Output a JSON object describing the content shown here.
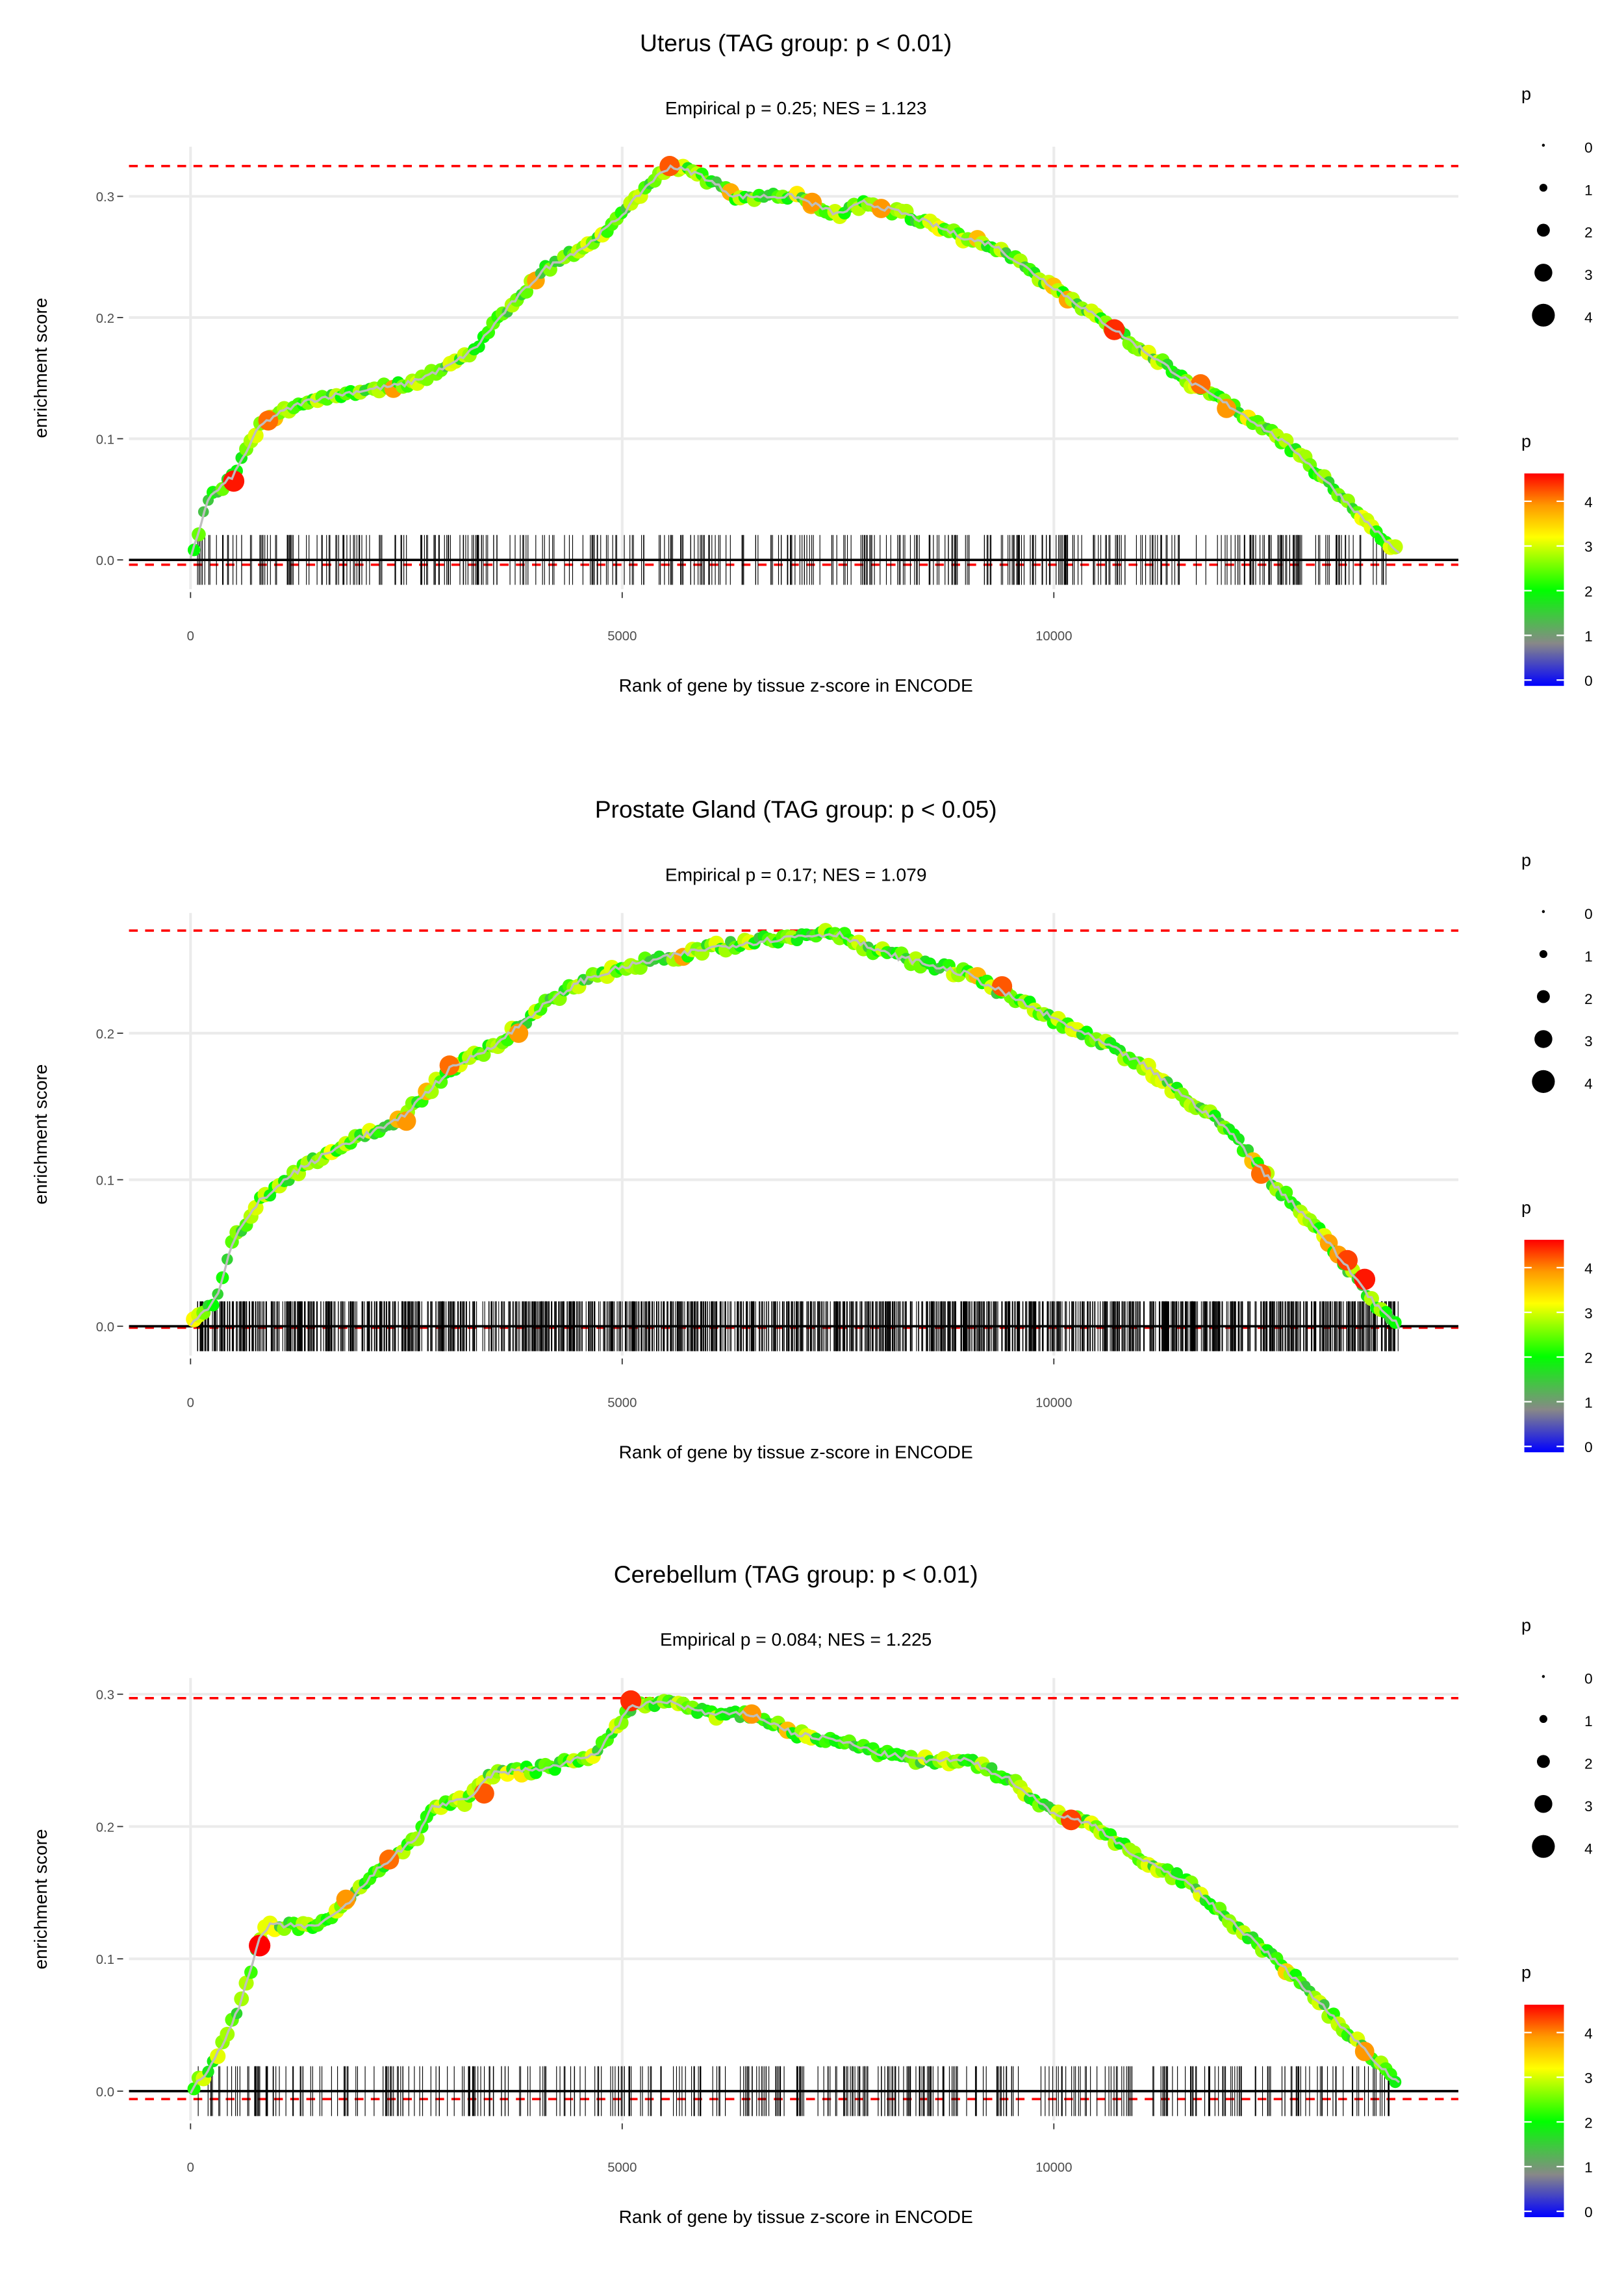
{
  "chart_data": [
    {
      "type": "scatter",
      "title": "Uterus (TAG group: p < 0.01)",
      "subtitle": "Empirical p = 0.25; NES = 1.123",
      "xlabel": "Rank of gene by tissue z-score in ENCODE",
      "ylabel": "enrichment score",
      "xlim": [
        -700,
        14800
      ],
      "ylim": [
        -0.02,
        0.34
      ],
      "xticks": [
        0,
        5000,
        10000
      ],
      "xtick_labels": [
        "0",
        "5000",
        "10000"
      ],
      "yticks": [
        0.0,
        0.1,
        0.2,
        0.3
      ],
      "ytick_labels": [
        "0.0",
        "0.1",
        "0.2",
        "0.3"
      ],
      "max_es": 0.325,
      "min_es": -0.004,
      "gene_tick_count": 420,
      "gene_tick_end": 13900,
      "curve": [
        [
          0,
          0
        ],
        [
          200,
          0.05
        ],
        [
          500,
          0.07
        ],
        [
          800,
          0.11
        ],
        [
          1000,
          0.12
        ],
        [
          1300,
          0.13
        ],
        [
          1600,
          0.135
        ],
        [
          2000,
          0.14
        ],
        [
          2500,
          0.145
        ],
        [
          3000,
          0.16
        ],
        [
          3300,
          0.175
        ],
        [
          3700,
          0.21
        ],
        [
          4100,
          0.24
        ],
        [
          4600,
          0.26
        ],
        [
          5000,
          0.285
        ],
        [
          5300,
          0.31
        ],
        [
          5550,
          0.325
        ],
        [
          5900,
          0.318
        ],
        [
          6300,
          0.3
        ],
        [
          7000,
          0.3
        ],
        [
          7500,
          0.285
        ],
        [
          7800,
          0.295
        ],
        [
          8300,
          0.285
        ],
        [
          9000,
          0.265
        ],
        [
          9300,
          0.26
        ],
        [
          10000,
          0.225
        ],
        [
          10700,
          0.19
        ],
        [
          11500,
          0.15
        ],
        [
          12200,
          0.12
        ],
        [
          12800,
          0.09
        ],
        [
          13500,
          0.04
        ],
        [
          14000,
          0.005
        ]
      ],
      "highlight_points": [
        [
          500,
          0.065,
          4.6
        ],
        [
          900,
          0.115,
          4.2
        ],
        [
          5550,
          0.325,
          4.3
        ],
        [
          7200,
          0.295,
          4.0
        ],
        [
          8000,
          0.29,
          4.0
        ],
        [
          10700,
          0.19,
          4.5
        ],
        [
          11700,
          0.145,
          4.2
        ],
        [
          12000,
          0.125,
          4.0
        ]
      ],
      "grid": true,
      "legend_placement": "right"
    },
    {
      "type": "scatter",
      "title": "Prostate Gland (TAG group: p < 0.05)",
      "subtitle": "Empirical p = 0.17; NES = 1.079",
      "xlabel": "Rank of gene by tissue z-score in ENCODE",
      "ylabel": "enrichment score",
      "xlim": [
        -700,
        14800
      ],
      "ylim": [
        -0.01,
        0.28
      ],
      "xticks": [
        0,
        5000,
        10000
      ],
      "xtick_labels": [
        "0",
        "5000",
        "10000"
      ],
      "yticks": [
        0.0,
        0.1,
        0.2
      ],
      "ytick_labels": [
        "0.0",
        "0.1",
        "0.2"
      ],
      "max_es": 0.27,
      "min_es": -0.001,
      "gene_tick_count": 1400,
      "gene_tick_end": 14000,
      "curve": [
        [
          0,
          0
        ],
        [
          300,
          0.02
        ],
        [
          500,
          0.06
        ],
        [
          800,
          0.085
        ],
        [
          1200,
          0.105
        ],
        [
          1800,
          0.125
        ],
        [
          2400,
          0.14
        ],
        [
          3000,
          0.175
        ],
        [
          3600,
          0.195
        ],
        [
          4000,
          0.215
        ],
        [
          4500,
          0.235
        ],
        [
          5000,
          0.245
        ],
        [
          6000,
          0.258
        ],
        [
          7000,
          0.266
        ],
        [
          7500,
          0.268
        ],
        [
          8000,
          0.255
        ],
        [
          9000,
          0.24
        ],
        [
          9500,
          0.225
        ],
        [
          10000,
          0.21
        ],
        [
          11000,
          0.18
        ],
        [
          12000,
          0.135
        ],
        [
          12500,
          0.1
        ],
        [
          13000,
          0.07
        ],
        [
          13400,
          0.04
        ],
        [
          13800,
          0.01
        ],
        [
          14000,
          0
        ]
      ],
      "highlight_points": [
        [
          3000,
          0.178,
          4.2
        ],
        [
          3800,
          0.2,
          4.0
        ],
        [
          2500,
          0.14,
          4.0
        ],
        [
          9400,
          0.232,
          4.3
        ],
        [
          12400,
          0.104,
          4.2
        ],
        [
          13400,
          0.045,
          4.4
        ],
        [
          13600,
          0.032,
          4.6
        ]
      ],
      "grid": true,
      "legend_placement": "right"
    },
    {
      "type": "scatter",
      "title": "Cerebellum (TAG group: p < 0.01)",
      "subtitle": "Empirical p = 0.084; NES = 1.225",
      "xlabel": "Rank of gene by tissue z-score in ENCODE",
      "ylabel": "enrichment score",
      "xlim": [
        -700,
        14800
      ],
      "ylim": [
        -0.02,
        0.31
      ],
      "xticks": [
        0,
        5000,
        10000
      ],
      "xtick_labels": [
        "0",
        "5000",
        "10000"
      ],
      "yticks": [
        0.0,
        0.1,
        0.2,
        0.3
      ],
      "ytick_labels": [
        "0.0",
        "0.1",
        "0.2",
        "0.3"
      ],
      "max_es": 0.297,
      "min_es": -0.006,
      "gene_tick_count": 400,
      "gene_tick_end": 13900,
      "curve": [
        [
          0,
          0
        ],
        [
          200,
          0.015
        ],
        [
          400,
          0.04
        ],
        [
          600,
          0.07
        ],
        [
          800,
          0.115
        ],
        [
          900,
          0.125
        ],
        [
          1200,
          0.125
        ],
        [
          1500,
          0.125
        ],
        [
          1800,
          0.14
        ],
        [
          2200,
          0.17
        ],
        [
          2600,
          0.19
        ],
        [
          2800,
          0.215
        ],
        [
          3200,
          0.22
        ],
        [
          3500,
          0.24
        ],
        [
          4200,
          0.245
        ],
        [
          4700,
          0.255
        ],
        [
          5100,
          0.29
        ],
        [
          5500,
          0.295
        ],
        [
          6000,
          0.285
        ],
        [
          6500,
          0.285
        ],
        [
          7000,
          0.27
        ],
        [
          7500,
          0.265
        ],
        [
          8000,
          0.255
        ],
        [
          8500,
          0.25
        ],
        [
          9000,
          0.25
        ],
        [
          9500,
          0.235
        ],
        [
          10000,
          0.21
        ],
        [
          10500,
          0.2
        ],
        [
          11000,
          0.175
        ],
        [
          11500,
          0.16
        ],
        [
          12200,
          0.12
        ],
        [
          12800,
          0.085
        ],
        [
          13400,
          0.045
        ],
        [
          14000,
          0.005
        ]
      ],
      "highlight_points": [
        [
          800,
          0.11,
          4.7
        ],
        [
          1800,
          0.145,
          4.0
        ],
        [
          2300,
          0.175,
          4.2
        ],
        [
          3400,
          0.225,
          4.3
        ],
        [
          5100,
          0.295,
          4.5
        ],
        [
          6500,
          0.285,
          4.0
        ],
        [
          10200,
          0.205,
          4.4
        ],
        [
          13600,
          0.03,
          4.0
        ]
      ],
      "grid": true,
      "legend_placement": "right"
    }
  ],
  "legend": {
    "size_title": "p",
    "size_labels": [
      "0",
      "1",
      "2",
      "3",
      "4"
    ],
    "color_title": "p",
    "color_labels": [
      "4",
      "3",
      "2",
      "1",
      "0"
    ],
    "color_stops": [
      "#0000ff",
      "#888888",
      "#00ff00",
      "#ffff00",
      "#ff0000"
    ]
  },
  "colors": {
    "threshold_line": "#ff0000",
    "curve": "#bebebe",
    "grid": "#ebebeb"
  }
}
